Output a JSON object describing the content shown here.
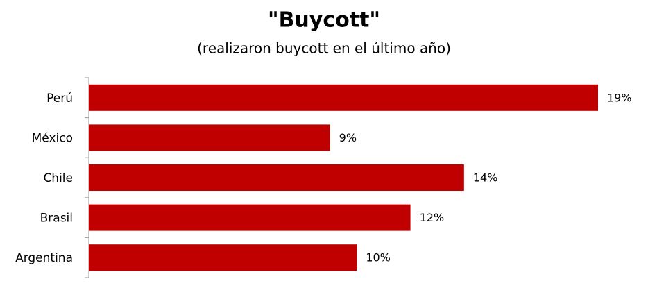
{
  "chart_data": {
    "type": "bar",
    "orientation": "horizontal",
    "title": "\"Buycott\"",
    "subtitle": "(realizaron buycott en el último año)",
    "categories": [
      "Perú",
      "México",
      "Chile",
      "Brasil",
      "Argentina"
    ],
    "values": [
      19,
      9,
      14,
      12,
      10
    ],
    "value_labels": [
      "19%",
      "9%",
      "14%",
      "12%",
      "10%"
    ],
    "color": "#c00000"
  }
}
